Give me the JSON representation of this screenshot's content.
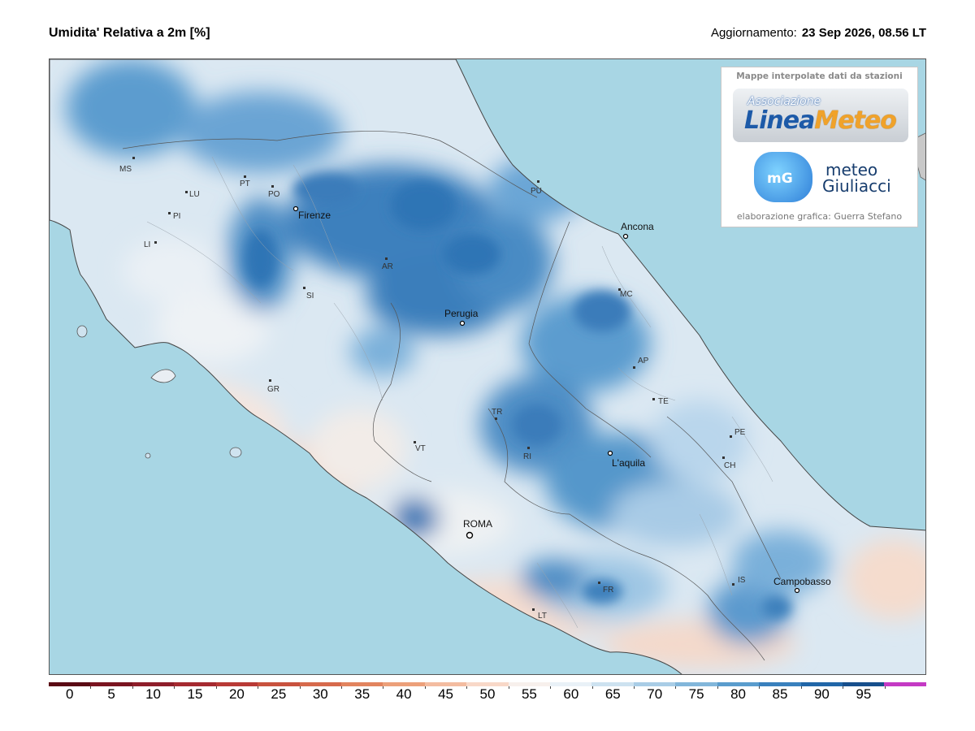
{
  "header": {
    "title": "Umidita' Relativa a 2m [%]",
    "update_label": "Aggiornamento:",
    "update_value": "23 Sep 2026, 08.56 LT"
  },
  "logo_box": {
    "caption": "Mappe interpolate dati da stazioni",
    "linea_small": "Associazione",
    "linea_part1": "Linea",
    "linea_part2": "Meteo",
    "mg_text": "mG",
    "mg_line1": "meteo",
    "mg_line2": "Giuliacci",
    "credit": "elaborazione grafica: Guerra Stefano"
  },
  "map": {
    "cities": [
      {
        "name": "Firenze",
        "major": true
      },
      {
        "name": "Perugia",
        "major": true
      },
      {
        "name": "Ancona",
        "major": true
      },
      {
        "name": "L'aquila",
        "major": true
      },
      {
        "name": "ROMA",
        "major": true
      },
      {
        "name": "Campobasso",
        "major": true
      }
    ],
    "provinces": [
      "MS",
      "LU",
      "PI",
      "LI",
      "PT",
      "PO",
      "AR",
      "SI",
      "GR",
      "PU",
      "MC",
      "AP",
      "TE",
      "PE",
      "CH",
      "TR",
      "RI",
      "VT",
      "FR",
      "LT",
      "IS"
    ],
    "colors": {
      "sea": "#a8d6e4",
      "land_base": "#eef3f7",
      "humid_dark": "#2f74b5",
      "humid_mid": "#6fa9d6",
      "humid_light": "#b4d3ea",
      "dry": "#f6dfd6",
      "border": "#555555"
    }
  },
  "colorbar": {
    "ticks": [
      "0",
      "5",
      "10",
      "15",
      "20",
      "25",
      "30",
      "35",
      "40",
      "45",
      "50",
      "55",
      "60",
      "65",
      "70",
      "75",
      "80",
      "85",
      "90",
      "95"
    ],
    "colors": [
      "#5a0a14",
      "#7a1420",
      "#8e1e2a",
      "#a52a30",
      "#b83a36",
      "#c8523e",
      "#d66a4c",
      "#e2845e",
      "#eca07a",
      "#f3bca0",
      "#f8d8c8",
      "#f7f0ec",
      "#e9f1f7",
      "#cde2f0",
      "#a9cde6",
      "#82b6da",
      "#5a9ccd",
      "#3980bd",
      "#2166a8",
      "#174f8c",
      "#c43ac4"
    ]
  }
}
